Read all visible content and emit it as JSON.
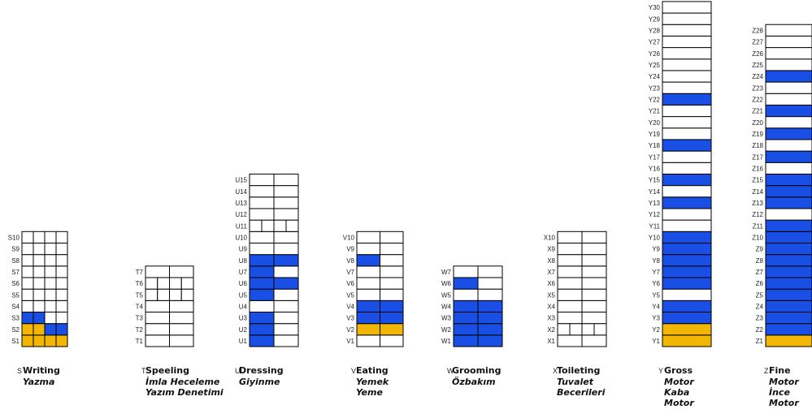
{
  "colors": {
    "blue": "#1a4fe6",
    "yellow": "#f2b705",
    "empty": "#ffffff",
    "border": "#000000"
  },
  "chart_data": {
    "type": "table",
    "title": "",
    "columns": [
      {
        "letter": "S",
        "title": "Writing",
        "subtitle": [
          "Yazma"
        ],
        "rows": 10,
        "split": [
          4,
          4,
          4,
          4,
          4,
          4,
          4,
          4,
          4,
          4
        ],
        "cells": {
          "1": [
            "Y",
            "Y",
            "Y",
            "Y"
          ],
          "2": [
            "Y",
            "Y",
            "B",
            "B"
          ],
          "3": [
            "B",
            "B",
            "W",
            "W"
          ]
        }
      },
      {
        "letter": "T",
        "title": "Speeling",
        "subtitle": [
          "İmla Heceleme",
          "Yazım Denetimi"
        ],
        "rows": 7,
        "split": [
          2,
          2,
          2,
          2,
          4,
          4,
          2
        ],
        "cells": {}
      },
      {
        "letter": "U",
        "title": "Dressing",
        "subtitle": [
          "Giyinme"
        ],
        "rows": 15,
        "split": [
          2,
          2,
          2,
          2,
          2,
          2,
          2,
          2,
          2,
          2,
          4,
          2,
          2,
          2,
          2
        ],
        "cells": {
          "1": [
            "B",
            "W"
          ],
          "2": [
            "B",
            "W"
          ],
          "3": [
            "B",
            "W"
          ],
          "5": [
            "B",
            "W"
          ],
          "6": [
            "B",
            "B"
          ],
          "7": [
            "B",
            "W"
          ],
          "8": [
            "B",
            "B"
          ]
        }
      },
      {
        "letter": "V",
        "title": "Eating",
        "subtitle": [
          "Yemek",
          "Yeme"
        ],
        "rows": 10,
        "split": [
          2,
          2,
          2,
          2,
          2,
          2,
          2,
          2,
          2,
          2
        ],
        "cells": {
          "2": [
            "Y",
            "Y"
          ],
          "3": [
            "B",
            "B"
          ],
          "4": [
            "B",
            "B"
          ],
          "8": [
            "B",
            "W"
          ]
        }
      },
      {
        "letter": "W",
        "title": "Grooming",
        "subtitle": [
          "Özbakım"
        ],
        "rows": 7,
        "split": [
          2,
          2,
          2,
          2,
          2,
          2,
          2
        ],
        "cells": {
          "1": [
            "B",
            "B"
          ],
          "2": [
            "B",
            "B"
          ],
          "3": [
            "B",
            "B"
          ],
          "4": [
            "B",
            "B"
          ],
          "6": [
            "B",
            "W"
          ]
        }
      },
      {
        "letter": "X",
        "title": "Toileting",
        "subtitle": [
          "Tuvalet",
          "Becerileri"
        ],
        "rows": 10,
        "split": [
          2,
          4,
          2,
          2,
          2,
          2,
          2,
          2,
          2,
          2
        ],
        "cells": {}
      },
      {
        "letter": "Y",
        "title": "Gross",
        "subtitle": [
          "Motor",
          "Kaba",
          "Motor"
        ],
        "rows": 30,
        "split": [],
        "filled": {
          "1": "Y",
          "2": "Y",
          "3": "B",
          "4": "B",
          "6": "B",
          "7": "B",
          "8": "B",
          "9": "B",
          "10": "B",
          "13": "B",
          "15": "B",
          "18": "B",
          "22": "B"
        }
      },
      {
        "letter": "Z",
        "title": "Fine",
        "subtitle": [
          "Motor",
          "İnce",
          "Motor"
        ],
        "rows": 28,
        "split": [],
        "filled": {
          "1": "Y",
          "2": "B",
          "3": "B",
          "4": "B",
          "5": "B",
          "6": "B",
          "7": "B",
          "8": "B",
          "9": "B",
          "10": "B",
          "11": "B",
          "13": "B",
          "14": "B",
          "15": "B",
          "17": "B",
          "19": "B",
          "21": "B",
          "24": "B"
        }
      }
    ]
  }
}
